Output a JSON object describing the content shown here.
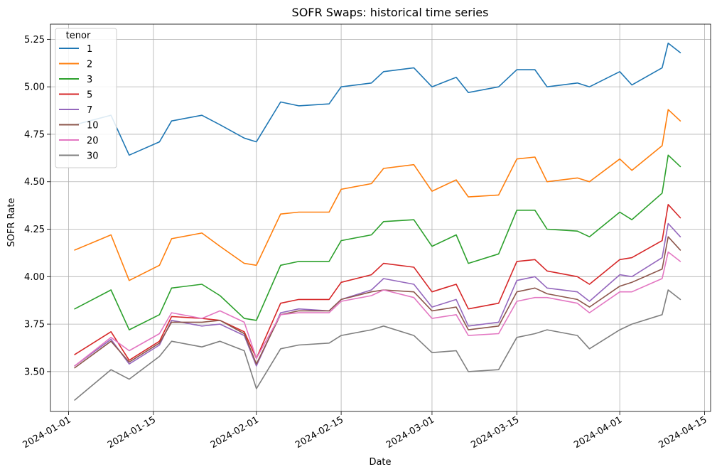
{
  "chart_data": {
    "type": "line",
    "title": "SOFR Swaps: historical time series",
    "xlabel": "Date",
    "ylabel": "SOFR Rate",
    "x_axis_type": "date",
    "xlim": [
      "2023-12-29",
      "2024-04-16"
    ],
    "ylim": [
      3.29,
      5.33
    ],
    "x_ticks": [
      "2024-01-01",
      "2024-01-15",
      "2024-02-01",
      "2024-02-15",
      "2024-03-01",
      "2024-03-15",
      "2024-04-01",
      "2024-04-15"
    ],
    "y_ticks": [
      3.5,
      3.75,
      4.0,
      4.25,
      4.5,
      4.75,
      5.0,
      5.25
    ],
    "y_tick_labels": [
      "3.50",
      "3.75",
      "4.00",
      "4.25",
      "4.50",
      "4.75",
      "5.00",
      "5.25"
    ],
    "grid": true,
    "legend": {
      "title": "tenor",
      "position": "top-left"
    },
    "x": [
      "2024-01-02",
      "2024-01-08",
      "2024-01-11",
      "2024-01-16",
      "2024-01-18",
      "2024-01-23",
      "2024-01-26",
      "2024-01-30",
      "2024-02-01",
      "2024-02-05",
      "2024-02-08",
      "2024-02-13",
      "2024-02-15",
      "2024-02-20",
      "2024-02-22",
      "2024-02-27",
      "2024-03-01",
      "2024-03-05",
      "2024-03-07",
      "2024-03-12",
      "2024-03-15",
      "2024-03-18",
      "2024-03-20",
      "2024-03-25",
      "2024-03-27",
      "2024-04-01",
      "2024-04-03",
      "2024-04-08",
      "2024-04-09",
      "2024-04-11"
    ],
    "series": [
      {
        "name": "1",
        "color": "#1f77b4",
        "values": [
          4.8,
          4.85,
          4.64,
          4.71,
          4.82,
          4.85,
          4.8,
          4.73,
          4.71,
          4.92,
          4.9,
          4.91,
          5.0,
          5.02,
          5.08,
          5.1,
          5.0,
          5.05,
          4.97,
          5.0,
          5.09,
          5.09,
          5.0,
          5.02,
          5.0,
          5.08,
          5.01,
          5.1,
          5.23,
          5.18
        ]
      },
      {
        "name": "2",
        "color": "#ff7f0e",
        "values": [
          4.14,
          4.22,
          3.98,
          4.06,
          4.2,
          4.23,
          4.16,
          4.07,
          4.06,
          4.33,
          4.34,
          4.34,
          4.46,
          4.49,
          4.57,
          4.59,
          4.45,
          4.51,
          4.42,
          4.43,
          4.62,
          4.63,
          4.5,
          4.52,
          4.5,
          4.62,
          4.56,
          4.69,
          4.88,
          4.82
        ]
      },
      {
        "name": "3",
        "color": "#2ca02c",
        "values": [
          3.83,
          3.93,
          3.72,
          3.8,
          3.94,
          3.96,
          3.9,
          3.78,
          3.77,
          4.06,
          4.08,
          4.08,
          4.19,
          4.22,
          4.29,
          4.3,
          4.16,
          4.22,
          4.07,
          4.12,
          4.35,
          4.35,
          4.25,
          4.24,
          4.21,
          4.34,
          4.3,
          4.44,
          4.64,
          4.58
        ]
      },
      {
        "name": "5",
        "color": "#d62728",
        "values": [
          3.59,
          3.71,
          3.56,
          3.66,
          3.79,
          3.78,
          3.77,
          3.71,
          3.57,
          3.86,
          3.88,
          3.88,
          3.97,
          4.01,
          4.07,
          4.05,
          3.92,
          3.96,
          3.83,
          3.86,
          4.08,
          4.09,
          4.03,
          4.0,
          3.96,
          4.09,
          4.1,
          4.19,
          4.38,
          4.31
        ]
      },
      {
        "name": "7",
        "color": "#9467bd",
        "values": [
          3.53,
          3.67,
          3.54,
          3.64,
          3.77,
          3.74,
          3.75,
          3.69,
          3.53,
          3.81,
          3.83,
          3.82,
          3.88,
          3.93,
          3.99,
          3.96,
          3.84,
          3.88,
          3.74,
          3.76,
          3.98,
          4.0,
          3.94,
          3.92,
          3.87,
          4.01,
          4.0,
          4.1,
          4.28,
          4.21
        ]
      },
      {
        "name": "10",
        "color": "#8c564b",
        "values": [
          3.52,
          3.66,
          3.55,
          3.65,
          3.76,
          3.76,
          3.77,
          3.7,
          3.54,
          3.8,
          3.82,
          3.82,
          3.88,
          3.92,
          3.93,
          3.92,
          3.82,
          3.84,
          3.72,
          3.74,
          3.92,
          3.94,
          3.91,
          3.88,
          3.84,
          3.95,
          3.97,
          4.04,
          4.21,
          4.14
        ]
      },
      {
        "name": "20",
        "color": "#e377c2",
        "values": [
          3.53,
          3.68,
          3.61,
          3.7,
          3.81,
          3.78,
          3.82,
          3.76,
          3.57,
          3.8,
          3.81,
          3.81,
          3.87,
          3.9,
          3.93,
          3.89,
          3.78,
          3.8,
          3.69,
          3.7,
          3.87,
          3.89,
          3.89,
          3.86,
          3.81,
          3.92,
          3.92,
          3.99,
          4.13,
          4.08
        ]
      },
      {
        "name": "30",
        "color": "#7f7f7f",
        "values": [
          3.35,
          3.51,
          3.46,
          3.58,
          3.66,
          3.63,
          3.66,
          3.61,
          3.41,
          3.62,
          3.64,
          3.65,
          3.69,
          3.72,
          3.74,
          3.69,
          3.6,
          3.61,
          3.5,
          3.51,
          3.68,
          3.7,
          3.72,
          3.69,
          3.62,
          3.72,
          3.75,
          3.8,
          3.93,
          3.88
        ]
      }
    ]
  }
}
